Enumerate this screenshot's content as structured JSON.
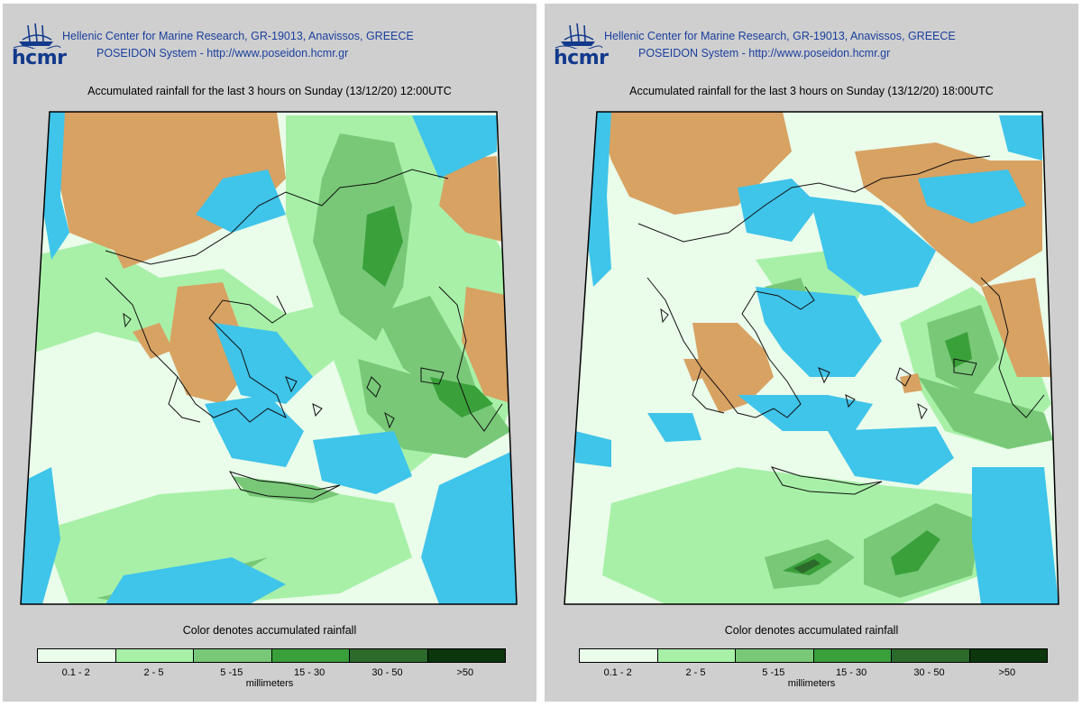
{
  "header": {
    "logo_text": "hcmr",
    "institute_line": "Hellenic Center for Marine Research, GR-19013, Anavissos, GREECE",
    "system_line": "POSEIDON System - http://www.poseidon.hcmr.gr"
  },
  "panels": [
    {
      "map_title": "Accumulated rainfall for the last 3 hours on Sunday (13/12/20) 12:00UTC"
    },
    {
      "map_title": "Accumulated rainfall for the last 3 hours on Sunday (13/12/20) 18:00UTC"
    }
  ],
  "legend": {
    "caption": "Color denotes accumulated rainfall",
    "units": "millimeters",
    "classes": [
      {
        "label": "0.1 - 2",
        "color": "#eafcea"
      },
      {
        "label": "2 - 5",
        "color": "#a8f0a8"
      },
      {
        "label": "5 -15",
        "color": "#78c878"
      },
      {
        "label": "15 - 30",
        "color": "#3aa03a"
      },
      {
        "label": "30 - 50",
        "color": "#2c6a2c"
      },
      {
        "label": ">50",
        "color": "#0c360c"
      }
    ]
  },
  "colors": {
    "land_no_rain": "#d8a263",
    "sea_no_rain": "#3fc4ea",
    "panel_background": "#cfcfcf",
    "header_text": "#1a3f9e"
  }
}
